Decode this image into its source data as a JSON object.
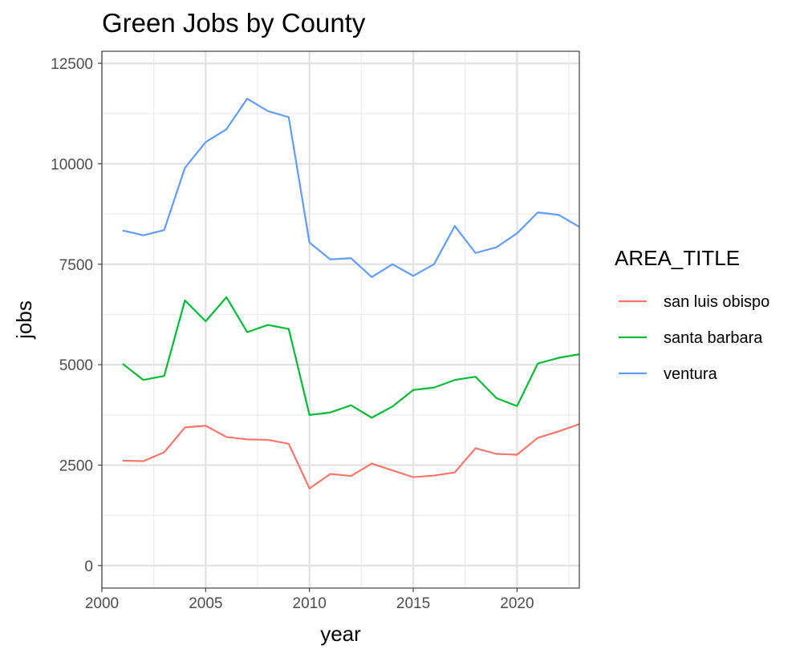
{
  "chart_data": {
    "type": "line",
    "title": "Green Jobs by County",
    "xlabel": "year",
    "ylabel": "jobs",
    "xlim": [
      2000,
      2023
    ],
    "ylim": [
      -560,
      12800
    ],
    "x_ticks": [
      2000,
      2005,
      2010,
      2015,
      2020
    ],
    "y_ticks": [
      0,
      2500,
      5000,
      7500,
      10000,
      12500
    ],
    "x_tick_labels": [
      "2000",
      "2005",
      "2010",
      "2015",
      "2020"
    ],
    "y_tick_labels": [
      "0",
      "2500",
      "5000",
      "7500",
      "10000",
      "12500"
    ],
    "grid": true,
    "legend": {
      "title": "AREA_TITLE",
      "placement": "right"
    },
    "x": [
      2001,
      2002,
      2003,
      2004,
      2005,
      2006,
      2007,
      2008,
      2009,
      2010,
      2011,
      2012,
      2013,
      2014,
      2015,
      2016,
      2017,
      2018,
      2019,
      2020,
      2021,
      2022,
      2023
    ],
    "series": [
      {
        "name": "san luis obispo",
        "color": "#f8766d",
        "values": [
          2610,
          2600,
          2820,
          3440,
          3480,
          3200,
          3140,
          3130,
          3030,
          1920,
          2280,
          2230,
          2540,
          2370,
          2200,
          2240,
          2320,
          2920,
          2780,
          2760,
          3180,
          3340,
          3520
        ]
      },
      {
        "name": "santa barbara",
        "color": "#00ba38",
        "values": [
          5020,
          4620,
          4720,
          6600,
          6080,
          6680,
          5810,
          5990,
          5890,
          3750,
          3810,
          3990,
          3680,
          3960,
          4370,
          4430,
          4620,
          4700,
          4170,
          3970,
          5030,
          5170,
          5260
        ]
      },
      {
        "name": "ventura",
        "color": "#619cff",
        "values": [
          8340,
          8220,
          8350,
          9900,
          10540,
          10860,
          11620,
          11310,
          11160,
          8040,
          7620,
          7650,
          7180,
          7500,
          7210,
          7500,
          8450,
          7780,
          7920,
          8270,
          8790,
          8730,
          8430
        ]
      }
    ]
  }
}
